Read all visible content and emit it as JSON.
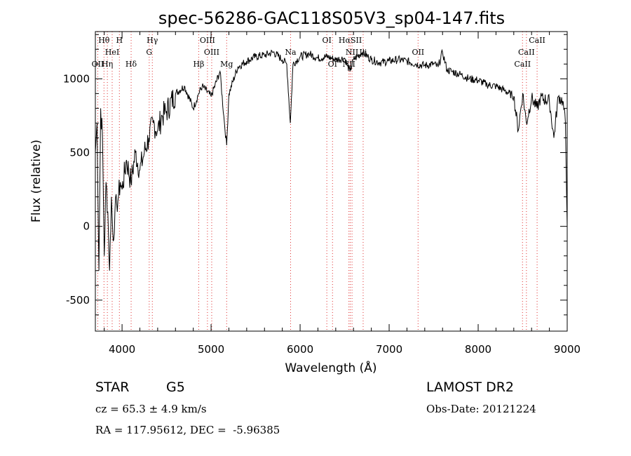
{
  "chart_data": {
    "type": "line",
    "title": "spec-56286-GAC118S05V3_sp04-147.fits",
    "xlabel": "Wavelength (Å)",
    "ylabel": "Flux (relative)",
    "xlim": [
      3700,
      9000
    ],
    "ylim": [
      -710,
      1320
    ],
    "x_ticks": [
      4000,
      5000,
      6000,
      7000,
      8000,
      9000
    ],
    "y_ticks": [
      -500,
      0,
      500,
      1000
    ],
    "grid": false,
    "series": [
      {
        "x": [
          3700,
          3720,
          3740,
          3760,
          3780,
          3800,
          3820,
          3840,
          3860,
          3880,
          3900,
          3920,
          3940,
          3960,
          3980,
          4000,
          4050,
          4100,
          4150,
          4200,
          4250,
          4300,
          4350,
          4400,
          4450,
          4500,
          4600,
          4700,
          4800,
          4860,
          4900,
          5000,
          5100,
          5150,
          5175,
          5200,
          5300,
          5400,
          5500,
          5600,
          5700,
          5800,
          5850,
          5890,
          5920,
          6000,
          6100,
          6200,
          6300,
          6400,
          6500,
          6560,
          6600,
          6700,
          6800,
          6900,
          7000,
          7100,
          7200,
          7300,
          7400,
          7500,
          7550,
          7600,
          7650,
          7700,
          7800,
          7900,
          8000,
          8100,
          8200,
          8300,
          8400,
          8450,
          8500,
          8542,
          8600,
          8662,
          8700,
          8800,
          8850,
          8900,
          8950,
          8980,
          9000
        ],
        "y": [
          500,
          700,
          -300,
          800,
          600,
          -200,
          300,
          100,
          -300,
          200,
          -100,
          100,
          150,
          200,
          300,
          250,
          450,
          300,
          500,
          380,
          500,
          600,
          700,
          650,
          750,
          780,
          900,
          950,
          800,
          900,
          950,
          880,
          1050,
          700,
          550,
          900,
          1080,
          1120,
          1150,
          1160,
          1180,
          1130,
          1100,
          700,
          1100,
          1150,
          1170,
          1140,
          1150,
          1130,
          1140,
          1050,
          1130,
          1180,
          1130,
          1110,
          1120,
          1130,
          1120,
          1100,
          1090,
          1100,
          1080,
          1180,
          1060,
          1050,
          1030,
          1000,
          990,
          960,
          950,
          920,
          880,
          650,
          900,
          700,
          870,
          800,
          870,
          850,
          600,
          880,
          850,
          700,
          0
        ]
      }
    ],
    "line_markers": [
      {
        "label": "Hθ",
        "x": 3797,
        "row": 0
      },
      {
        "label": "H",
        "x": 3970,
        "row": 0
      },
      {
        "label": "Hγ",
        "x": 4340,
        "row": 0
      },
      {
        "label": "OIII",
        "x": 4959,
        "row": 0
      },
      {
        "label": "OI",
        "x": 6300,
        "row": 0
      },
      {
        "label": "HαSII",
        "x": 6563,
        "row": 0
      },
      {
        "label": "CaII",
        "x": 8662,
        "row": 0
      },
      {
        "label": "HeI",
        "x": 3889,
        "row": 1
      },
      {
        "label": "G",
        "x": 4305,
        "row": 1
      },
      {
        "label": "OIII",
        "x": 5007,
        "row": 1
      },
      {
        "label": "Na",
        "x": 5893,
        "row": 1
      },
      {
        "label": "NII",
        "x": 6583,
        "row": 1
      },
      {
        "label": "Li",
        "x": 6708,
        "row": 1
      },
      {
        "label": "OII",
        "x": 7325,
        "row": 1
      },
      {
        "label": "CaII",
        "x": 8542,
        "row": 1
      },
      {
        "label": "OII",
        "x": 3727,
        "row": 2
      },
      {
        "label": "Hη",
        "x": 3835,
        "row": 2
      },
      {
        "label": "Hδ",
        "x": 4102,
        "row": 2
      },
      {
        "label": "Hβ",
        "x": 4861,
        "row": 2
      },
      {
        "label": "Mg",
        "x": 5175,
        "row": 2
      },
      {
        "label": "OI",
        "x": 6364,
        "row": 2
      },
      {
        "label": "NII",
        "x": 6548,
        "row": 2
      },
      {
        "label": "CaII",
        "x": 8498,
        "row": 2
      }
    ],
    "marker_color": "#e03030"
  },
  "footer": {
    "object_type": "STAR",
    "subclass": "G5",
    "survey": "LAMOST DR2",
    "cz": "cz = 65.3 ± 4.9 km/s",
    "obs_date": "Obs-Date: 20121224",
    "coords": "RA = 117.95612, DEC =  -5.96385"
  }
}
